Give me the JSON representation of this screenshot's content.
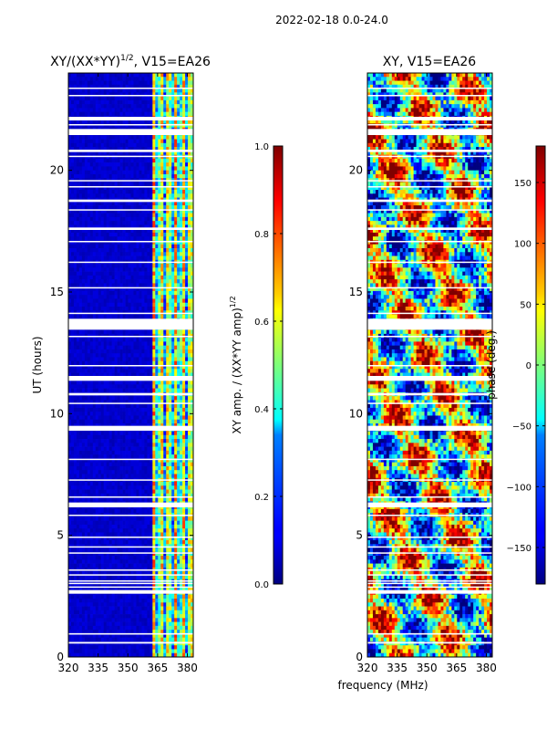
{
  "figure": {
    "suptitle": "2022-02-18 0.0-24.0",
    "xlabel_common": "frequency (MHz)"
  },
  "chart_data": [
    {
      "type": "heatmap",
      "title": "XY/(XX*YY)",
      "title_exponent": "1/2",
      "title_suffix": ", V15=EA26",
      "xlabel": "",
      "ylabel": "UT (hours)",
      "xlim": [
        320,
        383
      ],
      "ylim": [
        0,
        24
      ],
      "xticks": [
        320,
        335,
        350,
        365,
        380
      ],
      "yticks": [
        0,
        5,
        10,
        15,
        20
      ],
      "colorbar": {
        "label_prefix": "XY amp. / (XX*YY amp)",
        "label_exponent": "1/2",
        "range": [
          0.0,
          1.0
        ],
        "ticks": [
          "0.0",
          "0.2",
          "0.4",
          "0.6",
          "0.8",
          "1.0"
        ]
      },
      "notes": "Mostly ~0 (dark blue) below ~362 MHz; mixed 0.3–0.8 values in 362–382 MHz band."
    },
    {
      "type": "heatmap",
      "title": "XY, V15=EA26",
      "xlabel": "frequency (MHz)",
      "ylabel": "",
      "xlim": [
        320,
        383
      ],
      "ylim": [
        0,
        24
      ],
      "xticks": [
        320,
        335,
        350,
        365,
        380
      ],
      "yticks": [
        0,
        5,
        10,
        15,
        20
      ],
      "colorbar": {
        "label": "phase (deg.)",
        "range": [
          -180,
          180
        ],
        "ticks": [
          "-150",
          "-100",
          "-50",
          "0",
          "50",
          "100",
          "150"
        ]
      },
      "notes": "Noisy phase values spanning -180 to 180 deg across all frequencies."
    }
  ],
  "flagged_time_bands": [
    [
      0.55,
      0.62
    ],
    [
      0.92,
      0.98
    ],
    [
      2.6,
      2.75
    ],
    [
      2.85,
      2.9
    ],
    [
      3.0,
      3.05
    ],
    [
      3.1,
      3.15
    ],
    [
      3.35,
      3.4
    ],
    [
      3.55,
      3.6
    ],
    [
      4.25,
      4.3
    ],
    [
      4.5,
      4.55
    ],
    [
      4.9,
      4.95
    ],
    [
      5.8,
      5.85
    ],
    [
      6.15,
      6.35
    ],
    [
      6.55,
      6.6
    ],
    [
      7.25,
      7.3
    ],
    [
      8.1,
      8.15
    ],
    [
      9.3,
      9.5
    ],
    [
      10.4,
      10.45
    ],
    [
      10.75,
      10.85
    ],
    [
      11.35,
      11.55
    ],
    [
      11.95,
      12.0
    ],
    [
      13.15,
      13.2
    ],
    [
      13.45,
      13.9
    ],
    [
      14.1,
      14.15
    ],
    [
      15.15,
      15.2
    ],
    [
      16.2,
      16.25
    ],
    [
      17.05,
      17.1
    ],
    [
      17.55,
      17.65
    ],
    [
      18.35,
      18.4
    ],
    [
      18.7,
      18.8
    ],
    [
      19.3,
      19.35
    ],
    [
      19.55,
      19.6
    ],
    [
      20.55,
      20.6
    ],
    [
      20.75,
      20.85
    ],
    [
      21.45,
      21.7
    ],
    [
      21.85,
      21.9
    ],
    [
      22.05,
      22.2
    ],
    [
      23.05,
      23.1
    ],
    [
      23.35,
      23.4
    ]
  ]
}
